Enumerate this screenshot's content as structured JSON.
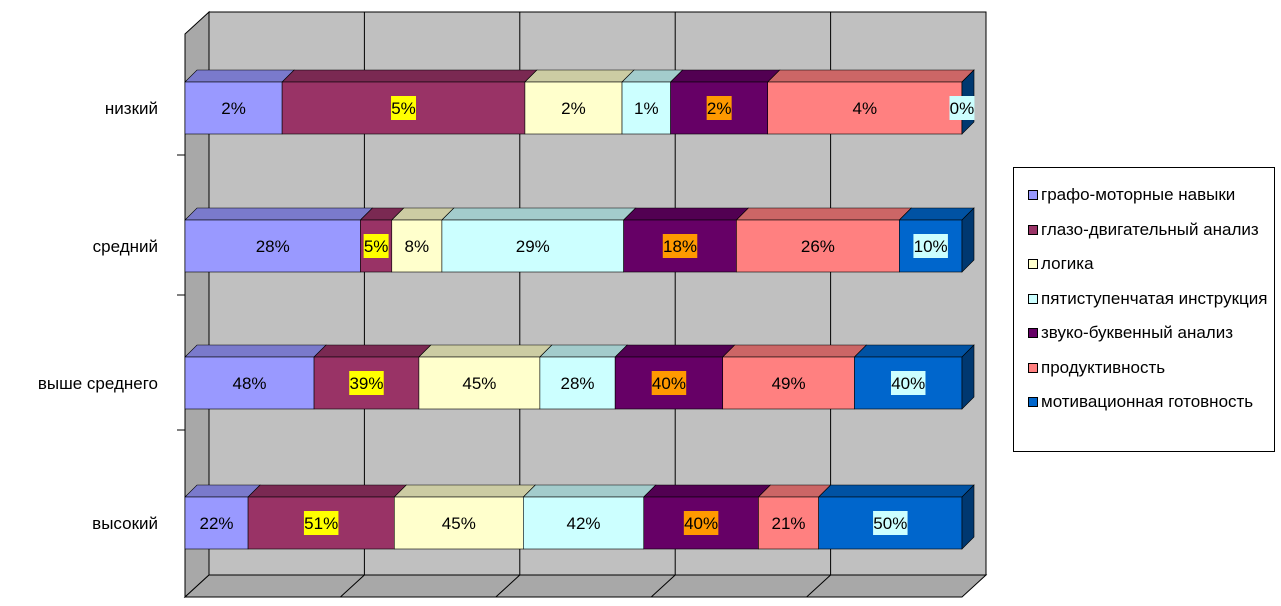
{
  "chart_data": {
    "type": "bar",
    "orientation": "horizontal",
    "stacked": true,
    "three_d": true,
    "grid": true,
    "legend_position": "right",
    "categories": [
      "низкий",
      "средний",
      "выше среднего",
      "высокий"
    ],
    "series": [
      {
        "name": "графо-моторные навыки",
        "color": "#9999ff",
        "values": [
          2,
          28,
          48,
          22
        ]
      },
      {
        "name": "глазо-двигательный анализ",
        "color": "#993366",
        "values": [
          5,
          5,
          39,
          51
        ]
      },
      {
        "name": "логика",
        "color": "#ffffcc",
        "values": [
          2,
          8,
          45,
          45
        ]
      },
      {
        "name": "пятиступенчатая инструкция",
        "color": "#ccffff",
        "values": [
          1,
          29,
          28,
          42
        ]
      },
      {
        "name": "звуко-буквенный анализ",
        "color": "#660066",
        "values": [
          2,
          18,
          40,
          40
        ]
      },
      {
        "name": "продуктивность",
        "color": "#ff8080",
        "values": [
          4,
          26,
          49,
          21
        ]
      },
      {
        "name": "мотивационная готовность",
        "color": "#0066cc",
        "values": [
          0,
          10,
          40,
          50
        ]
      }
    ],
    "data_labels": [
      [
        "2%",
        "5%",
        "2%",
        "1%",
        "2%",
        "4%",
        "0%"
      ],
      [
        "28%",
        "5%",
        "8%",
        "29%",
        "18%",
        "26%",
        "10%"
      ],
      [
        "48%",
        "39%",
        "45%",
        "28%",
        "40%",
        "49%",
        "40%"
      ],
      [
        "22%",
        "51%",
        "45%",
        "42%",
        "40%",
        "21%",
        "50%"
      ]
    ],
    "label_background": [
      "",
      "#ffff00",
      "",
      "",
      "#ff9900",
      "",
      "#ccffff"
    ],
    "legend": [
      "графо-моторные навыки",
      "глазо-двигательный анализ",
      "логика",
      "пятиступенчатая инструкция",
      "звуко-буквенный анализ",
      "продуктивность",
      "мотивационная готовность"
    ]
  }
}
